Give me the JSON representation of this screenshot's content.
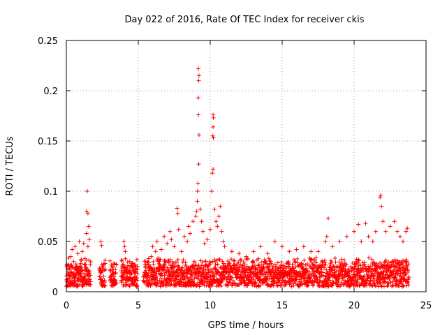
{
  "chart_data": {
    "type": "scatter",
    "title": "Day 022 of 2016, Rate Of TEC Index for receiver ckis",
    "xlabel": "GPS time / hours",
    "ylabel": "ROTI / TECUs",
    "xlim": [
      0,
      25
    ],
    "ylim": [
      0,
      0.25
    ],
    "x_ticks": [
      "0",
      "5",
      "10",
      "15",
      "20",
      "25"
    ],
    "y_ticks": [
      "0",
      "0.05",
      "0.1",
      "0.15",
      "0.2",
      "0.25"
    ],
    "grid": true,
    "marker": "+",
    "color": "#ff0000",
    "series": [
      {
        "points": [
          [
            0.1,
            0.018
          ],
          [
            0.2,
            0.025
          ],
          [
            0.3,
            0.035
          ],
          [
            0.4,
            0.042
          ],
          [
            0.5,
            0.03
          ],
          [
            0.6,
            0.045
          ],
          [
            0.7,
            0.022
          ],
          [
            0.8,
            0.038
          ],
          [
            0.9,
            0.05
          ],
          [
            1.0,
            0.028
          ],
          [
            1.1,
            0.04
          ],
          [
            1.2,
            0.048
          ],
          [
            1.3,
            0.033
          ],
          [
            1.4,
            0.08
          ],
          [
            1.45,
            0.1
          ],
          [
            1.5,
            0.078
          ],
          [
            1.55,
            0.065
          ],
          [
            1.6,
            0.052
          ],
          [
            1.4,
            0.058
          ],
          [
            1.5,
            0.045
          ],
          [
            2.4,
            0.05
          ],
          [
            2.45,
            0.046
          ],
          [
            2.5,
            0.025
          ],
          [
            2.4,
            0.02
          ],
          [
            3.2,
            0.022
          ],
          [
            3.3,
            0.018
          ],
          [
            4.0,
            0.05
          ],
          [
            4.05,
            0.045
          ],
          [
            4.1,
            0.04
          ],
          [
            4.2,
            0.015
          ],
          [
            4.4,
            0.03
          ],
          [
            4.6,
            0.028
          ],
          [
            4.8,
            0.022
          ],
          [
            4.9,
            0.032
          ],
          [
            5.5,
            0.03
          ],
          [
            5.7,
            0.025
          ],
          [
            5.9,
            0.035
          ],
          [
            6.0,
            0.045
          ],
          [
            6.2,
            0.04
          ],
          [
            6.3,
            0.05
          ],
          [
            6.5,
            0.032
          ],
          [
            6.6,
            0.042
          ],
          [
            6.8,
            0.055
          ],
          [
            7.0,
            0.048
          ],
          [
            7.2,
            0.06
          ],
          [
            7.3,
            0.052
          ],
          [
            7.5,
            0.045
          ],
          [
            7.7,
            0.083
          ],
          [
            7.75,
            0.078
          ],
          [
            7.8,
            0.062
          ],
          [
            8.0,
            0.04
          ],
          [
            8.2,
            0.055
          ],
          [
            8.4,
            0.05
          ],
          [
            8.5,
            0.065
          ],
          [
            8.6,
            0.058
          ],
          [
            8.8,
            0.07
          ],
          [
            9.0,
            0.075
          ],
          [
            9.05,
            0.08
          ],
          [
            9.1,
            0.09
          ],
          [
            9.12,
            0.1
          ],
          [
            9.15,
            0.108
          ],
          [
            9.2,
            0.127
          ],
          [
            9.22,
            0.156
          ],
          [
            9.18,
            0.176
          ],
          [
            9.17,
            0.193
          ],
          [
            9.2,
            0.21
          ],
          [
            9.22,
            0.215
          ],
          [
            9.18,
            0.222
          ],
          [
            9.3,
            0.082
          ],
          [
            9.4,
            0.07
          ],
          [
            9.5,
            0.06
          ],
          [
            9.6,
            0.048
          ],
          [
            9.8,
            0.052
          ],
          [
            10.0,
            0.062
          ],
          [
            10.1,
            0.1
          ],
          [
            10.15,
            0.118
          ],
          [
            10.2,
            0.122
          ],
          [
            10.22,
            0.153
          ],
          [
            10.18,
            0.155
          ],
          [
            10.2,
            0.164
          ],
          [
            10.22,
            0.173
          ],
          [
            10.2,
            0.176
          ],
          [
            10.3,
            0.082
          ],
          [
            10.4,
            0.07
          ],
          [
            10.5,
            0.065
          ],
          [
            10.6,
            0.075
          ],
          [
            10.7,
            0.085
          ],
          [
            10.8,
            0.06
          ],
          [
            10.9,
            0.05
          ],
          [
            11.0,
            0.045
          ],
          [
            11.5,
            0.04
          ],
          [
            12.0,
            0.038
          ],
          [
            12.5,
            0.035
          ],
          [
            13.0,
            0.04
          ],
          [
            13.5,
            0.045
          ],
          [
            14.0,
            0.038
          ],
          [
            14.5,
            0.05
          ],
          [
            15.0,
            0.045
          ],
          [
            15.5,
            0.04
          ],
          [
            16.0,
            0.042
          ],
          [
            16.5,
            0.045
          ],
          [
            17.0,
            0.04
          ],
          [
            17.5,
            0.04
          ],
          [
            18.0,
            0.05
          ],
          [
            18.1,
            0.055
          ],
          [
            18.2,
            0.073
          ],
          [
            18.5,
            0.045
          ],
          [
            19.0,
            0.05
          ],
          [
            19.5,
            0.055
          ],
          [
            20.0,
            0.06
          ],
          [
            20.3,
            0.067
          ],
          [
            20.5,
            0.05
          ],
          [
            20.8,
            0.068
          ],
          [
            21.0,
            0.055
          ],
          [
            21.3,
            0.05
          ],
          [
            21.5,
            0.06
          ],
          [
            21.8,
            0.094
          ],
          [
            21.85,
            0.096
          ],
          [
            21.9,
            0.085
          ],
          [
            22.0,
            0.07
          ],
          [
            22.2,
            0.06
          ],
          [
            22.5,
            0.065
          ],
          [
            22.8,
            0.07
          ],
          [
            23.0,
            0.06
          ],
          [
            23.2,
            0.055
          ],
          [
            23.4,
            0.05
          ],
          [
            23.6,
            0.06
          ],
          [
            23.7,
            0.063
          ]
        ]
      }
    ],
    "dense_band": {
      "x_start": 0,
      "x_end": 23.8,
      "y_low": 0.005,
      "y_high": 0.035,
      "gaps": [
        [
          1.7,
          2.3
        ],
        [
          2.7,
          3.0
        ],
        [
          3.5,
          3.8
        ],
        [
          4.95,
          5.35
        ]
      ]
    }
  }
}
